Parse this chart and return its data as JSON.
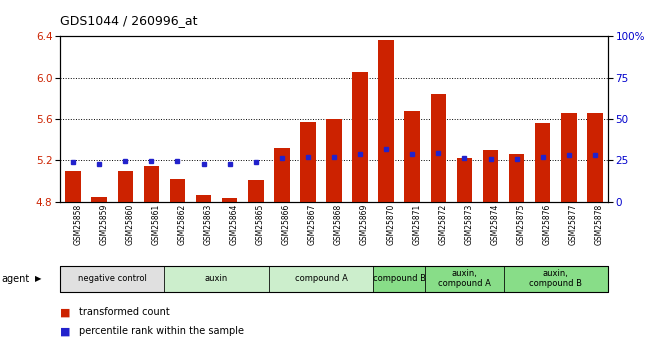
{
  "title": "GDS1044 / 260996_at",
  "samples": [
    "GSM25858",
    "GSM25859",
    "GSM25860",
    "GSM25861",
    "GSM25862",
    "GSM25863",
    "GSM25864",
    "GSM25865",
    "GSM25866",
    "GSM25867",
    "GSM25868",
    "GSM25869",
    "GSM25870",
    "GSM25871",
    "GSM25872",
    "GSM25873",
    "GSM25874",
    "GSM25875",
    "GSM25876",
    "GSM25877",
    "GSM25878"
  ],
  "bar_values": [
    5.1,
    4.85,
    5.1,
    5.15,
    5.02,
    4.87,
    4.84,
    5.01,
    5.32,
    5.57,
    5.6,
    6.05,
    6.36,
    5.68,
    5.84,
    5.22,
    5.3,
    5.26,
    5.56,
    5.66,
    5.66
  ],
  "percentile_values": [
    5.18,
    5.17,
    5.19,
    5.19,
    5.19,
    5.17,
    5.17,
    5.18,
    5.22,
    5.23,
    5.23,
    5.26,
    5.31,
    5.26,
    5.27,
    5.22,
    5.21,
    5.21,
    5.23,
    5.25,
    5.25
  ],
  "bar_color": "#cc2200",
  "dot_color": "#2222cc",
  "ylim_left": [
    4.8,
    6.4
  ],
  "ylim_right": [
    0,
    100
  ],
  "yticks_left": [
    4.8,
    5.2,
    5.6,
    6.0,
    6.4
  ],
  "yticks_right": [
    0,
    25,
    50,
    75,
    100
  ],
  "ytick_labels_right": [
    "0",
    "25",
    "50",
    "75",
    "100%"
  ],
  "groups": [
    {
      "label": "negative control",
      "start": 0,
      "end": 4,
      "color": "#e0e0e0"
    },
    {
      "label": "auxin",
      "start": 4,
      "end": 8,
      "color": "#cceecc"
    },
    {
      "label": "compound A",
      "start": 8,
      "end": 12,
      "color": "#cceecc"
    },
    {
      "label": "compound B",
      "start": 12,
      "end": 14,
      "color": "#88dd88"
    },
    {
      "label": "auxin,\ncompound A",
      "start": 14,
      "end": 17,
      "color": "#88dd88"
    },
    {
      "label": "auxin,\ncompound B",
      "start": 17,
      "end": 21,
      "color": "#88dd88"
    }
  ],
  "legend_items": [
    {
      "label": "transformed count",
      "color": "#cc2200"
    },
    {
      "label": "percentile rank within the sample",
      "color": "#2222cc"
    }
  ],
  "base_value": 4.8,
  "bar_width": 0.6,
  "background_color": "#ffffff",
  "tick_label_color_left": "#cc2200",
  "tick_label_color_right": "#0000cc"
}
